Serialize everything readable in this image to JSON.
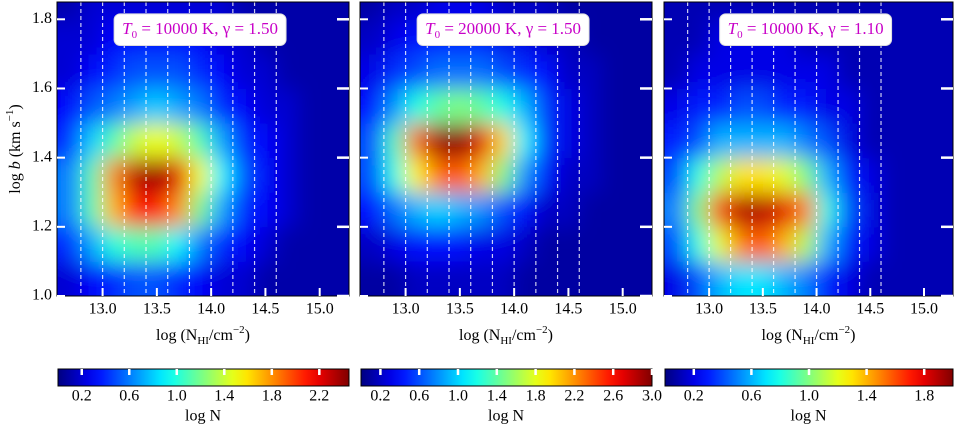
{
  "chart_data": [
    {
      "type": "heatmap",
      "annotation": [
        "T",
        "0",
        " = 10000 K,  γ = 1.50"
      ],
      "xlabel": [
        "log (N",
        "HI",
        "/cm",
        "−2",
        ")"
      ],
      "ylabel": [
        "log ",
        "b",
        " (km s",
        "−1",
        ")"
      ],
      "xlim": [
        12.58,
        15.27
      ],
      "xticks": [
        {
          "value": 13,
          "label": "13.0"
        },
        13.5,
        {
          "value": 14,
          "label": "14.0"
        },
        14.5,
        {
          "value": 15,
          "label": "15.0"
        }
      ],
      "ylim": [
        1.0,
        1.85
      ],
      "yticks": [
        {
          "value": 1,
          "label": "1.0"
        },
        1.2,
        1.4,
        1.6,
        1.8
      ],
      "vlines": [
        12.8,
        13.0,
        13.2,
        13.4,
        13.6,
        13.8,
        14.0,
        14.2,
        14.4,
        14.6
      ],
      "x": [
        12.7,
        12.9,
        13.1,
        13.3,
        13.5,
        13.7,
        13.9,
        14.1,
        14.3,
        14.5,
        14.7,
        14.9,
        15.1
      ],
      "y": [
        1.05,
        1.15,
        1.25,
        1.35,
        1.45,
        1.55,
        1.65,
        1.75,
        1.85
      ],
      "z": [
        [
          0.2,
          0.3,
          0.4,
          0.5,
          0.5,
          0.4,
          0.3,
          0.2,
          0.2,
          0.1,
          0.1,
          0.1,
          0.1
        ],
        [
          0.4,
          0.7,
          1.0,
          1.1,
          1.1,
          0.9,
          0.6,
          0.4,
          0.3,
          0.2,
          0.1,
          0.1,
          0.1
        ],
        [
          0.6,
          1.1,
          1.7,
          2.1,
          2.1,
          1.8,
          1.2,
          0.7,
          0.4,
          0.3,
          0.2,
          0.1,
          0.1
        ],
        [
          0.6,
          1.1,
          1.8,
          2.3,
          2.4,
          2.2,
          1.5,
          0.9,
          0.5,
          0.3,
          0.2,
          0.1,
          0.1
        ],
        [
          0.4,
          0.8,
          1.1,
          1.4,
          1.5,
          1.4,
          1.1,
          0.7,
          0.4,
          0.3,
          0.2,
          0.1,
          0.1
        ],
        [
          0.3,
          0.5,
          0.6,
          0.7,
          0.8,
          0.7,
          0.6,
          0.4,
          0.3,
          0.2,
          0.2,
          0.1,
          0.1
        ],
        [
          0.2,
          0.3,
          0.4,
          0.5,
          0.5,
          0.5,
          0.4,
          0.3,
          0.2,
          0.2,
          0.1,
          0.1,
          0.1
        ],
        [
          0.2,
          0.2,
          0.3,
          0.3,
          0.3,
          0.3,
          0.3,
          0.2,
          0.2,
          0.1,
          0.1,
          0.1,
          0.1
        ],
        [
          0.1,
          0.2,
          0.2,
          0.2,
          0.2,
          0.2,
          0.2,
          0.2,
          0.1,
          0.1,
          0.1,
          0.1,
          0.1
        ]
      ],
      "clim": [
        0,
        2.45
      ],
      "cticks": [
        0.2,
        0.6,
        {
          "value": 1,
          "label": "1.0"
        },
        1.4,
        1.8,
        2.2
      ],
      "clabel": "log N"
    },
    {
      "type": "heatmap",
      "annotation": [
        "T",
        "0",
        " = 20000 K,  γ = 1.50"
      ],
      "xlabel": [
        "log (N",
        "HI",
        "/cm",
        "−2",
        ")"
      ],
      "xlim": [
        12.58,
        15.27
      ],
      "xticks": [
        {
          "value": 13,
          "label": "13.0"
        },
        13.5,
        {
          "value": 14,
          "label": "14.0"
        },
        14.5,
        {
          "value": 15,
          "label": "15.0"
        }
      ],
      "vlines": [
        12.8,
        13.0,
        13.2,
        13.4,
        13.6,
        13.8,
        14.0,
        14.2,
        14.4,
        14.6
      ],
      "x": [
        12.7,
        12.9,
        13.1,
        13.3,
        13.5,
        13.7,
        13.9,
        14.1,
        14.3,
        14.5,
        14.7,
        14.9,
        15.1
      ],
      "y": [
        1.05,
        1.15,
        1.25,
        1.35,
        1.45,
        1.55,
        1.65,
        1.75,
        1.85
      ],
      "z": [
        [
          0.1,
          0.1,
          0.2,
          0.2,
          0.2,
          0.2,
          0.2,
          0.1,
          0.1,
          0.1,
          0.1,
          0.1,
          0.1
        ],
        [
          0.2,
          0.3,
          0.4,
          0.4,
          0.4,
          0.3,
          0.3,
          0.2,
          0.1,
          0.1,
          0.1,
          0.1,
          0.1
        ],
        [
          0.4,
          0.7,
          0.9,
          1.0,
          0.9,
          0.8,
          0.6,
          0.4,
          0.2,
          0.2,
          0.1,
          0.1,
          0.1
        ],
        [
          0.6,
          1.2,
          1.9,
          2.3,
          2.4,
          2.1,
          1.5,
          0.8,
          0.4,
          0.2,
          0.2,
          0.1,
          0.1
        ],
        [
          0.6,
          1.3,
          2.3,
          2.9,
          3.0,
          2.7,
          2.0,
          1.1,
          0.5,
          0.3,
          0.2,
          0.1,
          0.1
        ],
        [
          0.4,
          0.8,
          1.2,
          1.4,
          1.5,
          1.4,
          1.2,
          0.9,
          0.5,
          0.3,
          0.2,
          0.1,
          0.1
        ],
        [
          0.3,
          0.5,
          0.6,
          0.7,
          0.7,
          0.7,
          0.6,
          0.5,
          0.4,
          0.2,
          0.2,
          0.1,
          0.1
        ],
        [
          0.2,
          0.3,
          0.4,
          0.4,
          0.4,
          0.4,
          0.3,
          0.3,
          0.2,
          0.2,
          0.1,
          0.1,
          0.1
        ],
        [
          0.1,
          0.2,
          0.2,
          0.3,
          0.3,
          0.3,
          0.2,
          0.2,
          0.2,
          0.1,
          0.1,
          0.1,
          0.1
        ]
      ],
      "clim": [
        0,
        3.0
      ],
      "cticks": [
        0.2,
        0.6,
        {
          "value": 1,
          "label": "1.0"
        },
        1.4,
        1.8,
        2.2,
        2.6,
        {
          "value": 3,
          "label": "3.0"
        }
      ],
      "clabel": "log N"
    },
    {
      "type": "heatmap",
      "annotation": [
        "T",
        "0",
        " = 10000 K,  γ = 1.10"
      ],
      "xlabel": [
        "log (N",
        "HI",
        "/cm",
        "−2",
        ")"
      ],
      "xlim": [
        12.58,
        15.27
      ],
      "xticks": [
        {
          "value": 13,
          "label": "13.0"
        },
        13.5,
        {
          "value": 14,
          "label": "14.0"
        },
        14.5,
        {
          "value": 15,
          "label": "15.0"
        }
      ],
      "vlines": [
        12.8,
        13.0,
        13.2,
        13.4,
        13.6,
        13.8,
        14.0,
        14.2,
        14.4,
        14.6
      ],
      "x": [
        12.7,
        12.9,
        13.1,
        13.3,
        13.5,
        13.7,
        13.9,
        14.1,
        14.3,
        14.5,
        14.7,
        14.9,
        15.1
      ],
      "y": [
        1.05,
        1.15,
        1.25,
        1.35,
        1.45,
        1.55,
        1.65,
        1.75,
        1.85
      ],
      "z": [
        [
          0.2,
          0.4,
          0.6,
          0.7,
          0.7,
          0.6,
          0.5,
          0.3,
          0.2,
          0.1,
          0.1,
          0.1,
          0.1
        ],
        [
          0.4,
          0.8,
          1.2,
          1.5,
          1.6,
          1.4,
          1.1,
          0.6,
          0.3,
          0.2,
          0.1,
          0.1,
          0.1
        ],
        [
          0.5,
          1.0,
          1.6,
          1.9,
          1.9,
          1.8,
          1.5,
          0.8,
          0.4,
          0.2,
          0.1,
          0.1,
          0.1
        ],
        [
          0.4,
          0.8,
          1.1,
          1.3,
          1.3,
          1.2,
          1.0,
          0.6,
          0.3,
          0.2,
          0.1,
          0.1,
          0.1
        ],
        [
          0.3,
          0.4,
          0.6,
          0.6,
          0.6,
          0.6,
          0.5,
          0.4,
          0.2,
          0.1,
          0.1,
          0.1,
          0.1
        ],
        [
          0.2,
          0.3,
          0.3,
          0.4,
          0.4,
          0.3,
          0.3,
          0.2,
          0.2,
          0.1,
          0.1,
          0.1,
          0.1
        ],
        [
          0.1,
          0.2,
          0.2,
          0.2,
          0.2,
          0.2,
          0.2,
          0.2,
          0.1,
          0.1,
          0.1,
          0.1,
          0.1
        ],
        [
          0.1,
          0.1,
          0.2,
          0.2,
          0.2,
          0.2,
          0.1,
          0.1,
          0.1,
          0.1,
          0.1,
          0.1,
          0.1
        ],
        [
          0.1,
          0.1,
          0.1,
          0.1,
          0.1,
          0.1,
          0.1,
          0.1,
          0.1,
          0.1,
          0.1,
          0.1,
          0.1
        ]
      ],
      "clim": [
        0,
        2.0
      ],
      "cticks": [
        0.2,
        0.6,
        {
          "value": 1,
          "label": "1.0"
        },
        1.4,
        1.8
      ],
      "clabel": "log N"
    }
  ]
}
